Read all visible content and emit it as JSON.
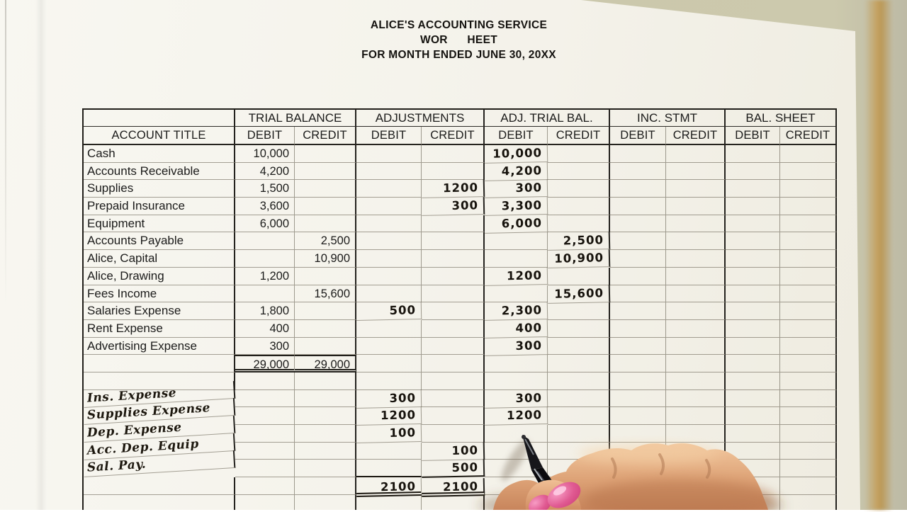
{
  "title": {
    "line1": "ALICE'S ACCOUNTING SERVICE",
    "line2": "WOR      HEET",
    "line3": "FOR MONTH ENDED JUNE 30, 20XX"
  },
  "table": {
    "column_groups": [
      "",
      "TRIAL BALANCE",
      "ADJUSTMENTS",
      "ADJ. TRIAL BAL.",
      "INC. STMT",
      "BAL. SHEET"
    ],
    "subheaders": [
      "ACCOUNT TITLE",
      "DEBIT",
      "CREDIT",
      "DEBIT",
      "CREDIT",
      "DEBIT",
      "CREDIT",
      "DEBIT",
      "CREDIT",
      "DEBIT",
      "CREDIT"
    ],
    "rows": [
      {
        "account": "Cash",
        "tb_debit": "10,000",
        "atb_debit": "10,000"
      },
      {
        "account": "Accounts Receivable",
        "tb_debit": "4,200",
        "atb_debit": "4,200"
      },
      {
        "account": "Supplies",
        "tb_debit": "1,500",
        "adj_credit": "1200",
        "atb_debit": "300"
      },
      {
        "account": "Prepaid Insurance",
        "tb_debit": "3,600",
        "adj_credit": "300",
        "atb_debit": "3,300"
      },
      {
        "account": "Equipment",
        "tb_debit": "6,000",
        "atb_debit": "6,000"
      },
      {
        "account": "Accounts Payable",
        "tb_credit": "2,500",
        "atb_credit": "2,500"
      },
      {
        "account": "Alice, Capital",
        "tb_credit": "10,900",
        "atb_credit": "10,900"
      },
      {
        "account": "Alice, Drawing",
        "tb_debit": "1,200",
        "atb_debit": "1200"
      },
      {
        "account": "Fees Income",
        "tb_credit": "15,600",
        "atb_credit": "15,600"
      },
      {
        "account": "Salaries Expense",
        "tb_debit": "1,800",
        "adj_debit": "500",
        "atb_debit": "2,300"
      },
      {
        "account": "Rent Expense",
        "tb_debit": "400",
        "atb_debit": "400"
      },
      {
        "account": "Advertising Expense",
        "tb_debit": "300",
        "atb_debit": "300"
      },
      {
        "account": "",
        "tb_debit": "29,000",
        "tb_credit": "29,000",
        "type": "tb-totals"
      },
      {
        "account": ""
      },
      {
        "account": "Ins. Expense",
        "hand": true,
        "adj_debit": "300",
        "atb_debit": "300"
      },
      {
        "account": "Supplies Expense",
        "hand": true,
        "adj_debit": "1200",
        "atb_debit": "1200"
      },
      {
        "account": "Dep. Expense",
        "hand": true,
        "adj_debit": "100"
      },
      {
        "account": "Acc. Dep. Equip",
        "hand": true,
        "adj_credit": "100"
      },
      {
        "account": "Sal. Pay.",
        "hand": true,
        "adj_credit": "500",
        "type": "adj-rule"
      },
      {
        "account": "",
        "adj_debit": "2100",
        "adj_credit": "2100",
        "type": "adj-totals"
      },
      {
        "account": ""
      }
    ]
  },
  "overlay": {
    "hand": "right-hand-holding-black-marker-pen",
    "pen_color": "#101014",
    "nail_color": "#d8437e",
    "skin_color": "#dda276"
  },
  "colors": {
    "paper": "#f4f2ea",
    "desk": "#c9c6aa",
    "desk_stripe": "#c59a4f",
    "grid_line": "#5f5848",
    "heavy_line": "#24221e",
    "ink": "#17130d"
  }
}
